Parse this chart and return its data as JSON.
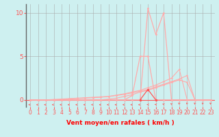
{
  "title": "",
  "xlabel": "Vent moyen/en rafales ( km/h )",
  "background_color": "#cef0f0",
  "grid_color": "#aaaaaa",
  "line_color_dark": "#ff5555",
  "line_color_light": "#ffaaaa",
  "xlim": [
    -0.5,
    23.5
  ],
  "ylim": [
    -0.8,
    11.0
  ],
  "yticks": [
    0,
    5,
    10
  ],
  "xticks": [
    0,
    1,
    2,
    3,
    4,
    5,
    6,
    7,
    8,
    9,
    10,
    11,
    12,
    13,
    14,
    15,
    16,
    17,
    18,
    19,
    20,
    21,
    22,
    23
  ],
  "series": [
    {
      "x": [
        0,
        1,
        2,
        3,
        4,
        5,
        6,
        7,
        8,
        9,
        10,
        11,
        12,
        13,
        14,
        15,
        16,
        17,
        18,
        19,
        20,
        21,
        22,
        23
      ],
      "y": [
        0,
        0,
        0,
        0,
        0,
        0,
        0,
        0,
        0,
        0,
        0,
        0,
        0,
        0,
        0,
        10.5,
        7.5,
        10.0,
        0,
        0,
        0,
        0,
        0,
        0
      ],
      "color": "#ffaaaa",
      "lw": 0.9,
      "marker": "o",
      "ms": 2.0,
      "zorder": 5
    },
    {
      "x": [
        14,
        15,
        16
      ],
      "y": [
        0,
        1.2,
        0
      ],
      "color": "#ff5555",
      "lw": 0.9,
      "marker": "o",
      "ms": 2.5,
      "zorder": 6
    },
    {
      "x": [
        0,
        1,
        2,
        3,
        4,
        5,
        6,
        7,
        8,
        9,
        10,
        11,
        12,
        13,
        14,
        15,
        16,
        17,
        18,
        19,
        20,
        21,
        22,
        23
      ],
      "y": [
        0,
        0,
        0,
        0,
        0,
        0,
        0,
        0,
        0,
        0,
        0,
        0,
        0,
        0.5,
        5.0,
        5.0,
        0,
        0,
        0,
        0,
        0,
        0,
        0,
        0
      ],
      "color": "#ffaaaa",
      "lw": 0.9,
      "marker": "o",
      "ms": 2.0,
      "zorder": 5
    },
    {
      "x": [
        0,
        1,
        2,
        3,
        4,
        5,
        6,
        7,
        8,
        9,
        10,
        11,
        12,
        13,
        14,
        15,
        16,
        17,
        18,
        19,
        20,
        21,
        22,
        23
      ],
      "y": [
        0,
        0,
        0,
        0,
        0,
        0,
        0,
        0,
        0,
        0,
        0.1,
        0.2,
        0.4,
        0.6,
        0.9,
        1.1,
        1.4,
        1.7,
        2.0,
        2.3,
        2.0,
        0,
        0,
        0
      ],
      "color": "#ffaaaa",
      "lw": 0.8,
      "marker": "o",
      "ms": 1.8,
      "zorder": 4
    },
    {
      "x": [
        0,
        1,
        2,
        3,
        4,
        5,
        6,
        7,
        8,
        9,
        10,
        11,
        12,
        13,
        14,
        15,
        16,
        17,
        18,
        19,
        20,
        21,
        22,
        23
      ],
      "y": [
        0,
        0,
        0,
        0.05,
        0.1,
        0.15,
        0.2,
        0.25,
        0.3,
        0.35,
        0.4,
        0.5,
        0.65,
        0.8,
        1.0,
        1.2,
        1.5,
        1.8,
        2.1,
        2.4,
        2.8,
        0,
        0,
        0
      ],
      "color": "#ffaaaa",
      "lw": 0.8,
      "marker": "o",
      "ms": 1.8,
      "zorder": 4
    },
    {
      "x": [
        0,
        1,
        2,
        3,
        4,
        5,
        6,
        7,
        8,
        9,
        10,
        11,
        12,
        13,
        14,
        15,
        16,
        17,
        18,
        19,
        20,
        21,
        22,
        23
      ],
      "y": [
        0,
        0,
        0,
        0,
        0.05,
        0.1,
        0.15,
        0.2,
        0.25,
        0.3,
        0.4,
        0.55,
        0.7,
        0.9,
        1.1,
        1.4,
        1.7,
        2.1,
        2.5,
        3.5,
        0,
        0,
        0,
        0
      ],
      "color": "#ffaaaa",
      "lw": 0.8,
      "marker": "o",
      "ms": 1.8,
      "zorder": 4
    }
  ],
  "hline_y": 0,
  "hline_color": "#ff5555",
  "hline_lw": 0.8,
  "left_spine_color": "#666666",
  "tick_color": "#ff5555",
  "xlabel_color": "#ff0000",
  "xlabel_fontsize": 6.5,
  "ytick_fontsize": 6.5,
  "xtick_fontsize": 5.5
}
